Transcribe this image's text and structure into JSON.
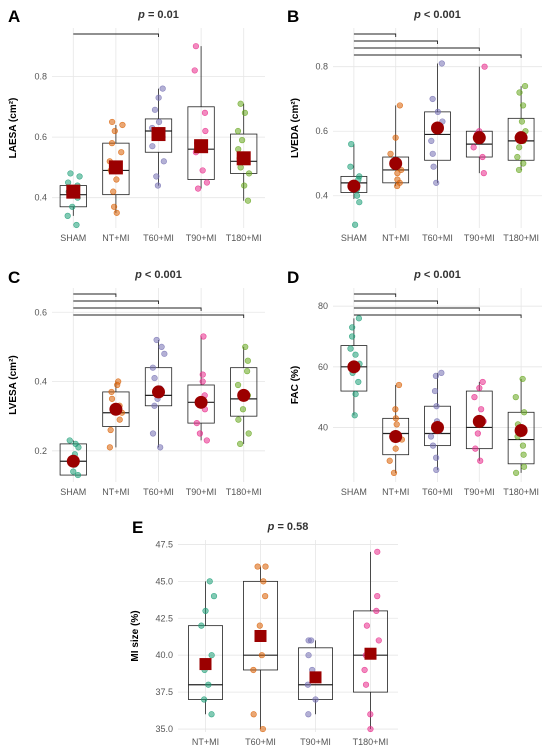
{
  "chart_data": [
    {
      "type": "boxplot",
      "letter": "A",
      "p_label": "p",
      "p_rest": " = 0.01",
      "ylabel": "LAESA (cm²)",
      "ylim": [
        0.3,
        0.96
      ],
      "yticks": [
        0.4,
        0.6,
        0.8
      ],
      "categories": [
        "SHAM",
        "NT+MI",
        "T60+MI",
        "T90+MI",
        "T180+MI"
      ],
      "colors": [
        "#1b9e77",
        "#d95f02",
        "#7570b3",
        "#e7298a",
        "#66a61e"
      ],
      "brackets": [
        [
          0,
          2
        ]
      ],
      "boxes": [
        {
          "q1": 0.37,
          "median": 0.41,
          "q3": 0.44,
          "min": 0.34,
          "max": 0.44,
          "mean": 0.42
        },
        {
          "q1": 0.41,
          "median": 0.49,
          "q3": 0.58,
          "min": 0.35,
          "max": 0.64,
          "mean": 0.5
        },
        {
          "q1": 0.55,
          "median": 0.62,
          "q3": 0.66,
          "min": 0.44,
          "max": 0.76,
          "mean": 0.61
        },
        {
          "q1": 0.46,
          "median": 0.56,
          "q3": 0.7,
          "min": 0.43,
          "max": 0.9,
          "mean": 0.57
        },
        {
          "q1": 0.48,
          "median": 0.52,
          "q3": 0.61,
          "min": 0.39,
          "max": 0.71,
          "mean": 0.53
        }
      ],
      "points": [
        [
          0.31,
          0.34,
          0.37,
          0.4,
          0.42,
          0.44,
          0.45,
          0.47,
          0.48
        ],
        [
          0.35,
          0.37,
          0.42,
          0.46,
          0.49,
          0.52,
          0.55,
          0.58,
          0.62,
          0.64,
          0.65
        ],
        [
          0.44,
          0.47,
          0.52,
          0.57,
          0.6,
          0.63,
          0.65,
          0.69,
          0.73,
          0.76
        ],
        [
          0.43,
          0.45,
          0.49,
          0.55,
          0.58,
          0.62,
          0.68,
          0.82,
          0.9
        ],
        [
          0.39,
          0.44,
          0.48,
          0.5,
          0.53,
          0.56,
          0.59,
          0.62,
          0.68,
          0.71
        ]
      ]
    },
    {
      "type": "boxplot",
      "letter": "B",
      "p_label": "p",
      "p_rest": " < 0.001",
      "ylabel": "LVEDA (cm²)",
      "ylim": [
        0.3,
        0.92
      ],
      "yticks": [
        0.4,
        0.6,
        0.8
      ],
      "categories": [
        "SHAM",
        "NT+MI",
        "T60+MI",
        "T90+MI",
        "T180+MI"
      ],
      "colors": [
        "#1b9e77",
        "#d95f02",
        "#7570b3",
        "#e7298a",
        "#66a61e"
      ],
      "brackets": [
        [
          0,
          1
        ],
        [
          0,
          2
        ],
        [
          0,
          3
        ],
        [
          0,
          4
        ]
      ],
      "boxes": [
        {
          "q1": 0.41,
          "median": 0.44,
          "q3": 0.46,
          "min": 0.39,
          "max": 0.56,
          "mean": 0.43
        },
        {
          "q1": 0.44,
          "median": 0.48,
          "q3": 0.52,
          "min": 0.43,
          "max": 0.68,
          "mean": 0.5
        },
        {
          "q1": 0.51,
          "median": 0.59,
          "q3": 0.66,
          "min": 0.44,
          "max": 0.81,
          "mean": 0.61
        },
        {
          "q1": 0.52,
          "median": 0.56,
          "q3": 0.6,
          "min": 0.47,
          "max": 0.8,
          "mean": 0.58
        },
        {
          "q1": 0.51,
          "median": 0.57,
          "q3": 0.64,
          "min": 0.48,
          "max": 0.74,
          "mean": 0.58
        }
      ],
      "points": [
        [
          0.31,
          0.38,
          0.4,
          0.42,
          0.44,
          0.45,
          0.46,
          0.49,
          0.56
        ],
        [
          0.43,
          0.44,
          0.45,
          0.47,
          0.48,
          0.5,
          0.53,
          0.58,
          0.68
        ],
        [
          0.44,
          0.49,
          0.53,
          0.57,
          0.6,
          0.63,
          0.66,
          0.7,
          0.81
        ],
        [
          0.47,
          0.52,
          0.55,
          0.57,
          0.59,
          0.6,
          0.8
        ],
        [
          0.48,
          0.5,
          0.52,
          0.55,
          0.57,
          0.6,
          0.63,
          0.68,
          0.72,
          0.74
        ]
      ]
    },
    {
      "type": "boxplot",
      "letter": "C",
      "p_label": "p",
      "p_rest": " < 0.001",
      "ylabel": "LVESA (cm²)",
      "ylim": [
        0.11,
        0.67
      ],
      "yticks": [
        0.2,
        0.4,
        0.6
      ],
      "categories": [
        "SHAM",
        "NT+MI",
        "T60+MI",
        "T90+MI",
        "T180+MI"
      ],
      "colors": [
        "#1b9e77",
        "#d95f02",
        "#7570b3",
        "#e7298a",
        "#66a61e"
      ],
      "brackets": [
        [
          0,
          1
        ],
        [
          0,
          2
        ],
        [
          0,
          3
        ],
        [
          0,
          4
        ]
      ],
      "boxes": [
        {
          "q1": 0.13,
          "median": 0.17,
          "q3": 0.22,
          "min": 0.13,
          "max": 0.23,
          "mean": 0.17
        },
        {
          "q1": 0.27,
          "median": 0.31,
          "q3": 0.37,
          "min": 0.21,
          "max": 0.4,
          "mean": 0.32
        },
        {
          "q1": 0.33,
          "median": 0.36,
          "q3": 0.44,
          "min": 0.21,
          "max": 0.52,
          "mean": 0.37
        },
        {
          "q1": 0.28,
          "median": 0.34,
          "q3": 0.39,
          "min": 0.23,
          "max": 0.53,
          "mean": 0.34
        },
        {
          "q1": 0.3,
          "median": 0.35,
          "q3": 0.44,
          "min": 0.22,
          "max": 0.5,
          "mean": 0.36
        }
      ],
      "points": [
        [
          0.13,
          0.14,
          0.16,
          0.17,
          0.19,
          0.21,
          0.22,
          0.23
        ],
        [
          0.21,
          0.26,
          0.29,
          0.31,
          0.33,
          0.35,
          0.37,
          0.39,
          0.4
        ],
        [
          0.21,
          0.25,
          0.33,
          0.35,
          0.38,
          0.41,
          0.44,
          0.48,
          0.5,
          0.52
        ],
        [
          0.23,
          0.25,
          0.28,
          0.32,
          0.36,
          0.4,
          0.42,
          0.53
        ],
        [
          0.22,
          0.25,
          0.29,
          0.32,
          0.36,
          0.39,
          0.43,
          0.46,
          0.5
        ]
      ]
    },
    {
      "type": "boxplot",
      "letter": "D",
      "p_label": "p",
      "p_rest": " < 0.001",
      "ylabel": "FAC (%)",
      "ylim": [
        22,
        86
      ],
      "yticks": [
        40,
        60,
        80
      ],
      "categories": [
        "SHAM",
        "NT+MI",
        "T60+MI",
        "T90+MI",
        "T180+MI"
      ],
      "colors": [
        "#1b9e77",
        "#d95f02",
        "#7570b3",
        "#e7298a",
        "#66a61e"
      ],
      "brackets": [
        [
          0,
          1
        ],
        [
          0,
          2
        ],
        [
          0,
          3
        ],
        [
          0,
          4
        ]
      ],
      "boxes": [
        {
          "q1": 52,
          "median": 60,
          "q3": 67,
          "min": 44,
          "max": 76,
          "mean": 60
        },
        {
          "q1": 31,
          "median": 38,
          "q3": 43,
          "min": 25,
          "max": 54,
          "mean": 37
        },
        {
          "q1": 34,
          "median": 38,
          "q3": 47,
          "min": 26,
          "max": 58,
          "mean": 40
        },
        {
          "q1": 33,
          "median": 40,
          "q3": 52,
          "min": 29,
          "max": 55,
          "mean": 42
        },
        {
          "q1": 28,
          "median": 36,
          "q3": 45,
          "min": 25,
          "max": 56,
          "mean": 39
        }
      ],
      "points": [
        [
          44,
          51,
          55,
          58,
          61,
          64,
          66,
          70,
          73,
          76
        ],
        [
          25,
          29,
          33,
          36,
          38,
          41,
          43,
          46,
          54
        ],
        [
          26,
          30,
          34,
          37,
          39,
          42,
          47,
          52,
          57,
          58
        ],
        [
          29,
          33,
          38,
          42,
          46,
          50,
          53,
          55
        ],
        [
          25,
          27,
          31,
          34,
          37,
          41,
          45,
          50,
          56
        ]
      ]
    },
    {
      "type": "boxplot",
      "letter": "E",
      "p_label": "p",
      "p_rest": " = 0.58",
      "ylabel": "MI size (%)",
      "ylim": [
        34.8,
        47.8
      ],
      "yticks": [
        35.0,
        37.5,
        40.0,
        42.5,
        45.0,
        47.5
      ],
      "ytick_labels": [
        "35.0",
        "37.5",
        "40.0",
        "42.5",
        "45.0",
        "47.5"
      ],
      "categories": [
        "NT+MI",
        "T60+MI",
        "T90+MI",
        "T180+MI"
      ],
      "colors": [
        "#1b9e77",
        "#d95f02",
        "#7570b3",
        "#e7298a"
      ],
      "brackets": [],
      "boxes": [
        {
          "q1": 37.0,
          "median": 38.0,
          "q3": 42.0,
          "min": 36.0,
          "max": 45.0,
          "mean": 39.4
        },
        {
          "q1": 39.0,
          "median": 40.0,
          "q3": 45.0,
          "min": 35.0,
          "max": 46.0,
          "mean": 41.3
        },
        {
          "q1": 37.0,
          "median": 38.0,
          "q3": 40.5,
          "min": 36.0,
          "max": 41.0,
          "mean": 38.5
        },
        {
          "q1": 37.5,
          "median": 40.0,
          "q3": 43.0,
          "min": 35.0,
          "max": 47.0,
          "mean": 40.1
        }
      ],
      "points": [
        [
          36.0,
          37.0,
          38.0,
          39.0,
          40.0,
          42.0,
          43.0,
          44.0,
          45.0
        ],
        [
          35.0,
          36.0,
          39.0,
          40.0,
          42.0,
          44.0,
          45.0,
          46.0,
          46.0
        ],
        [
          36.0,
          37.0,
          38.0,
          39.0,
          40.0,
          41.0,
          41.0
        ],
        [
          35.0,
          36.0,
          38.0,
          39.0,
          40.0,
          41.0,
          42.0,
          43.0,
          44.0,
          47.0
        ]
      ]
    }
  ]
}
